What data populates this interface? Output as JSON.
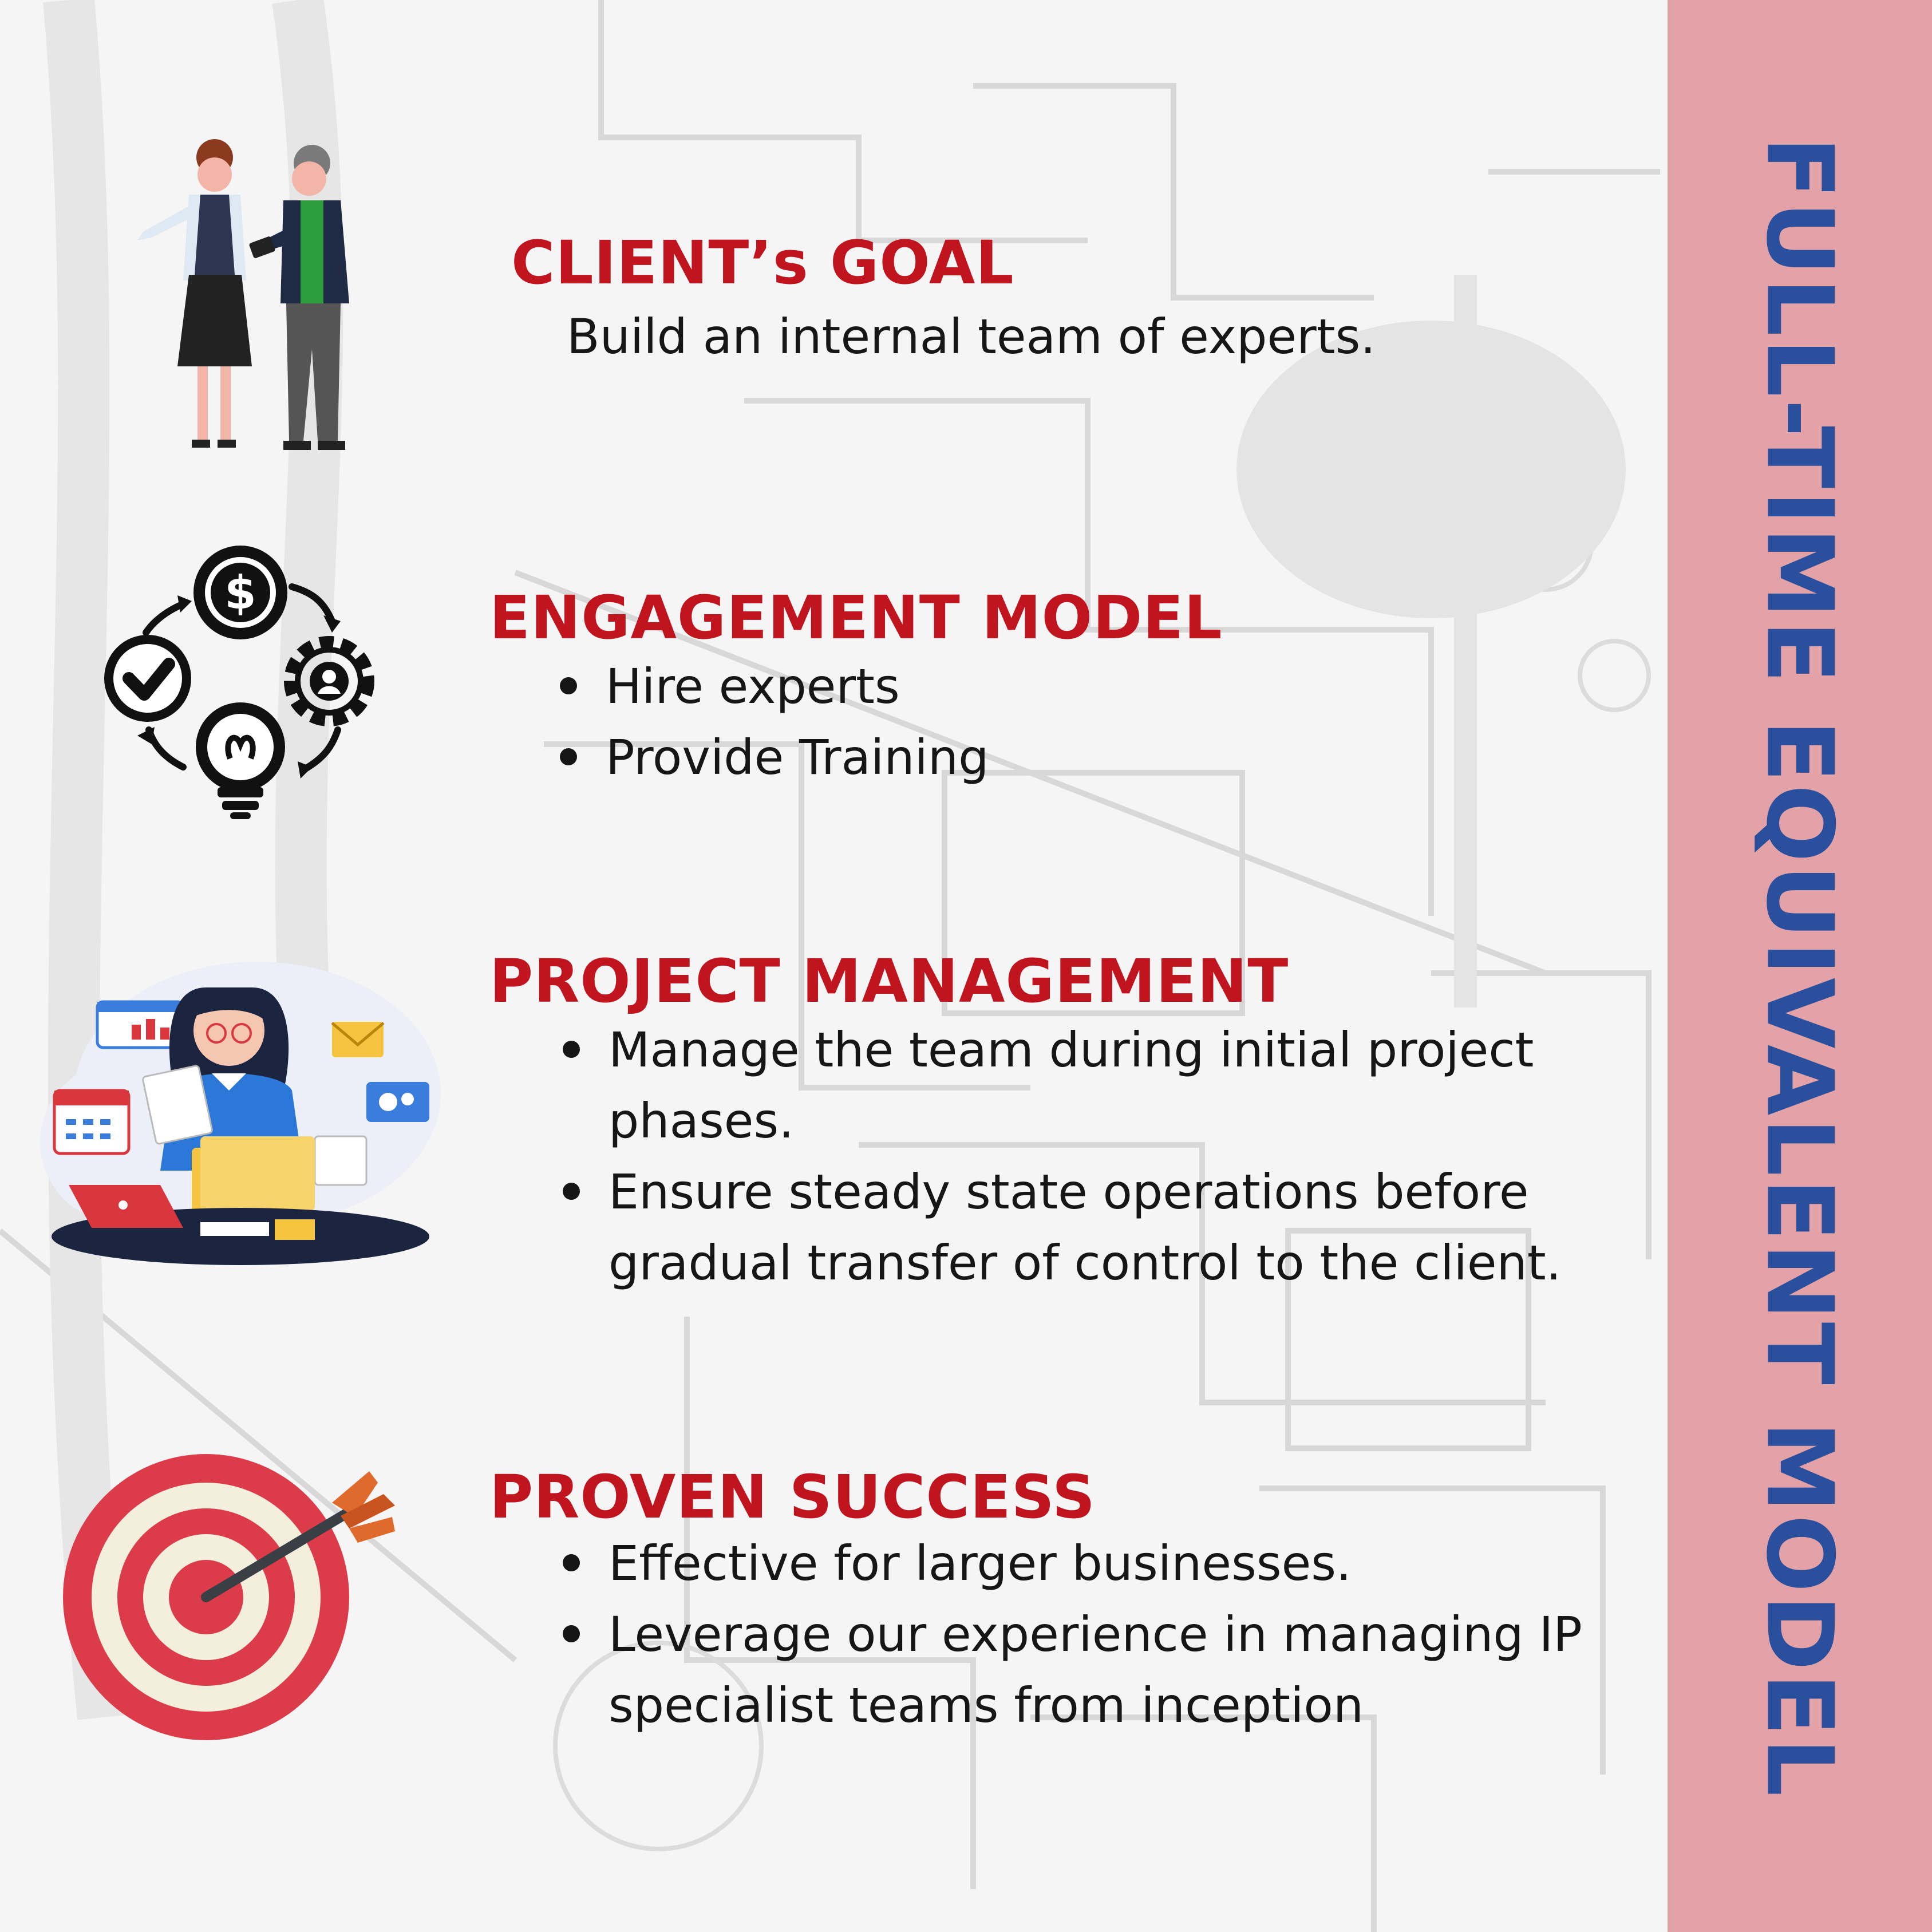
{
  "side_title": "FULL-TIME EQUIVALENT MODEL",
  "sections": [
    {
      "title": "CLIENT’s GOAL",
      "text": "Build an internal team of experts.",
      "icon": "client-meeting-icon"
    },
    {
      "title": "ENGAGEMENT MODEL",
      "bullets": [
        "Hire experts",
        "Provide Training"
      ],
      "icon": "engagement-cycle-icon"
    },
    {
      "title": "PROJECT MANAGEMENT",
      "bullets": [
        "Manage the team during initial project phases.",
        "Ensure steady state operations before gradual transfer of control to the client."
      ],
      "icon": "office-worker-icon"
    },
    {
      "title": "PROVEN SUCCESS",
      "bullets": [
        "Effective for larger businesses.",
        "Leverage our experience in managing IP specialist teams from inception"
      ],
      "icon": "target-arrow-icon"
    }
  ],
  "colors": {
    "heading": "#c0141f",
    "body_text": "#161616",
    "side_band": "#e3a2a8",
    "side_title": "#2a4f9c"
  }
}
